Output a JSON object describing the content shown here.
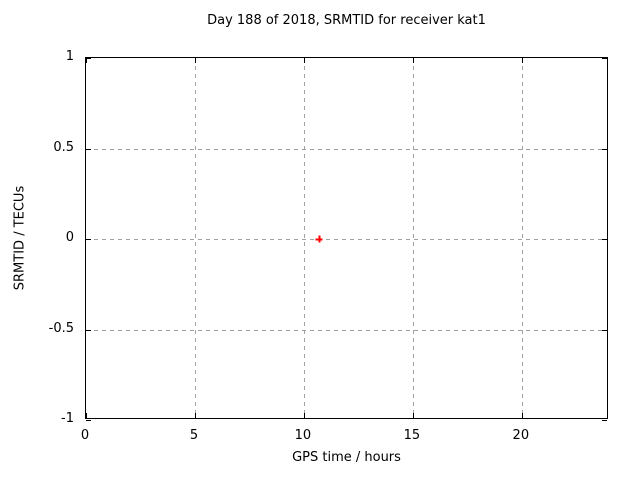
{
  "chart_data": {
    "type": "scatter",
    "title": "Day 188 of 2018, SRMTID for receiver kat1",
    "xlabel": "GPS time / hours",
    "ylabel": "SRMTID / TECUs",
    "xlim": [
      0,
      24
    ],
    "ylim": [
      -1,
      1
    ],
    "xticks": [
      {
        "value": 0,
        "label": "0"
      },
      {
        "value": 5,
        "label": "5"
      },
      {
        "value": 10,
        "label": "10"
      },
      {
        "value": 15,
        "label": "15"
      },
      {
        "value": 20,
        "label": "20"
      }
    ],
    "yticks": [
      {
        "value": -1,
        "label": "-1"
      },
      {
        "value": -0.5,
        "label": "-0.5"
      },
      {
        "value": 0,
        "label": "0"
      },
      {
        "value": 0.5,
        "label": "0.5"
      },
      {
        "value": 1,
        "label": "1"
      }
    ],
    "grid": true,
    "legend_position": "none",
    "colors": {
      "grid": "#a0a0a0",
      "axis": "#000000",
      "text": "#000000",
      "background": "#ffffff"
    },
    "series": [
      {
        "name": "SRMTID",
        "marker": "plus",
        "color": "#ff0000",
        "points": [
          {
            "x": 10.7,
            "y": 0.0
          }
        ]
      }
    ]
  }
}
